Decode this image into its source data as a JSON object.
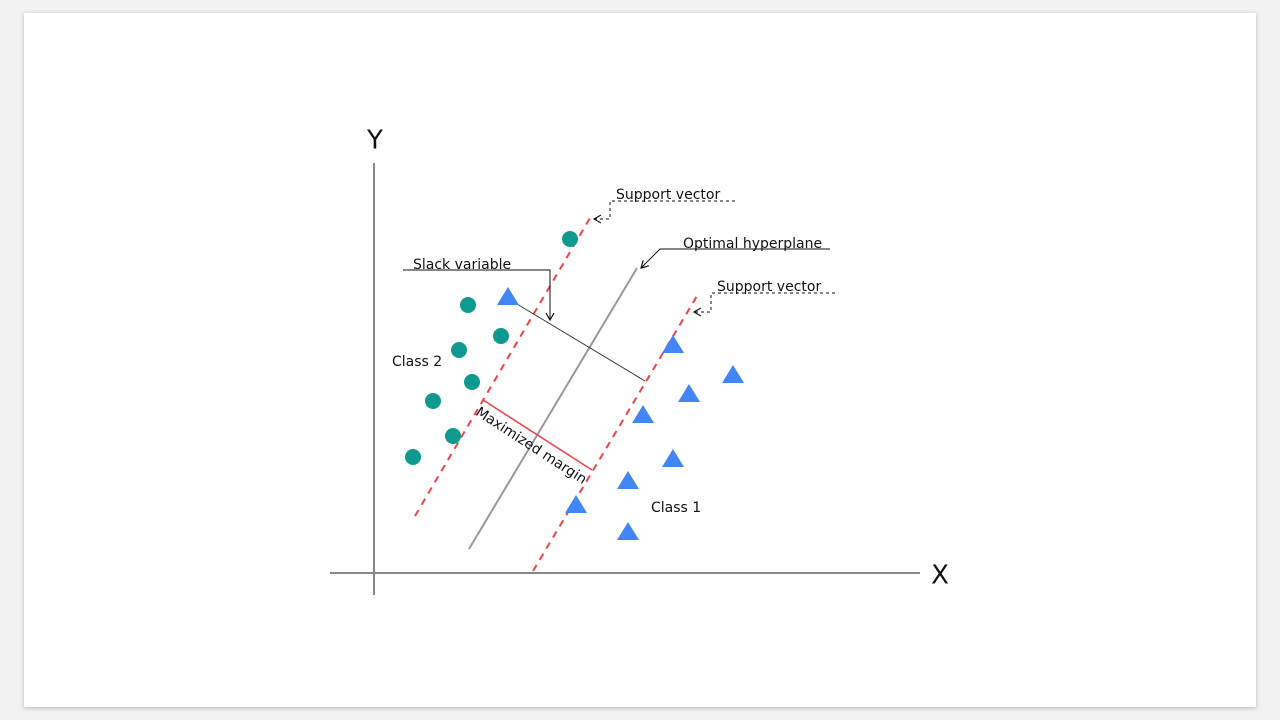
{
  "axes": {
    "y_label": "Y",
    "x_label": "X"
  },
  "annotations": {
    "support_vector_upper": "Support vector",
    "optimal_hyperplane": "Optimal hyperplane",
    "support_vector_lower": "Support vector",
    "slack_variable": "Slack variable",
    "maximized_margin": "Maximized margin"
  },
  "classes": {
    "class_2": "Class 2",
    "class_1": "Class 1"
  }
}
